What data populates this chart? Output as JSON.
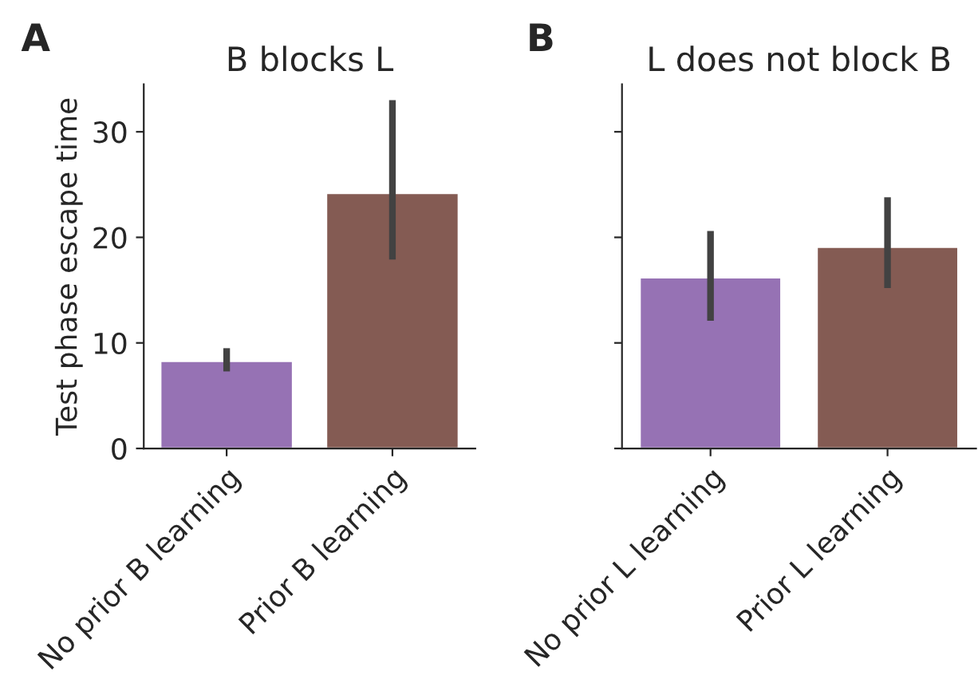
{
  "chart_data": [
    {
      "type": "bar",
      "title": "B blocks L",
      "ylabel": "Test phase escape time",
      "annotations": [
        "A"
      ],
      "categories": [
        "No prior B learning",
        "Prior B learning"
      ],
      "values": [
        8.3,
        24.2
      ],
      "colors": [
        "#9672b4",
        "#845b53"
      ],
      "errors": [
        [
          7.3,
          9.5
        ],
        [
          17.9,
          33.0
        ]
      ],
      "ylim": [
        0,
        34.5
      ],
      "yticks": [
        0,
        10,
        20,
        30
      ]
    },
    {
      "type": "bar",
      "title": "L does not block B",
      "annotations": [
        "B"
      ],
      "categories": [
        "No prior L learning",
        "Prior L learning"
      ],
      "values": [
        16.2,
        19.1
      ],
      "colors": [
        "#9672b4",
        "#845b53"
      ],
      "errors": [
        [
          12.1,
          20.6
        ],
        [
          15.2,
          23.8
        ]
      ],
      "ylim": [
        0,
        34.5
      ],
      "yticks": [
        0,
        10,
        20,
        30
      ],
      "tick_labels": "x"
    }
  ]
}
